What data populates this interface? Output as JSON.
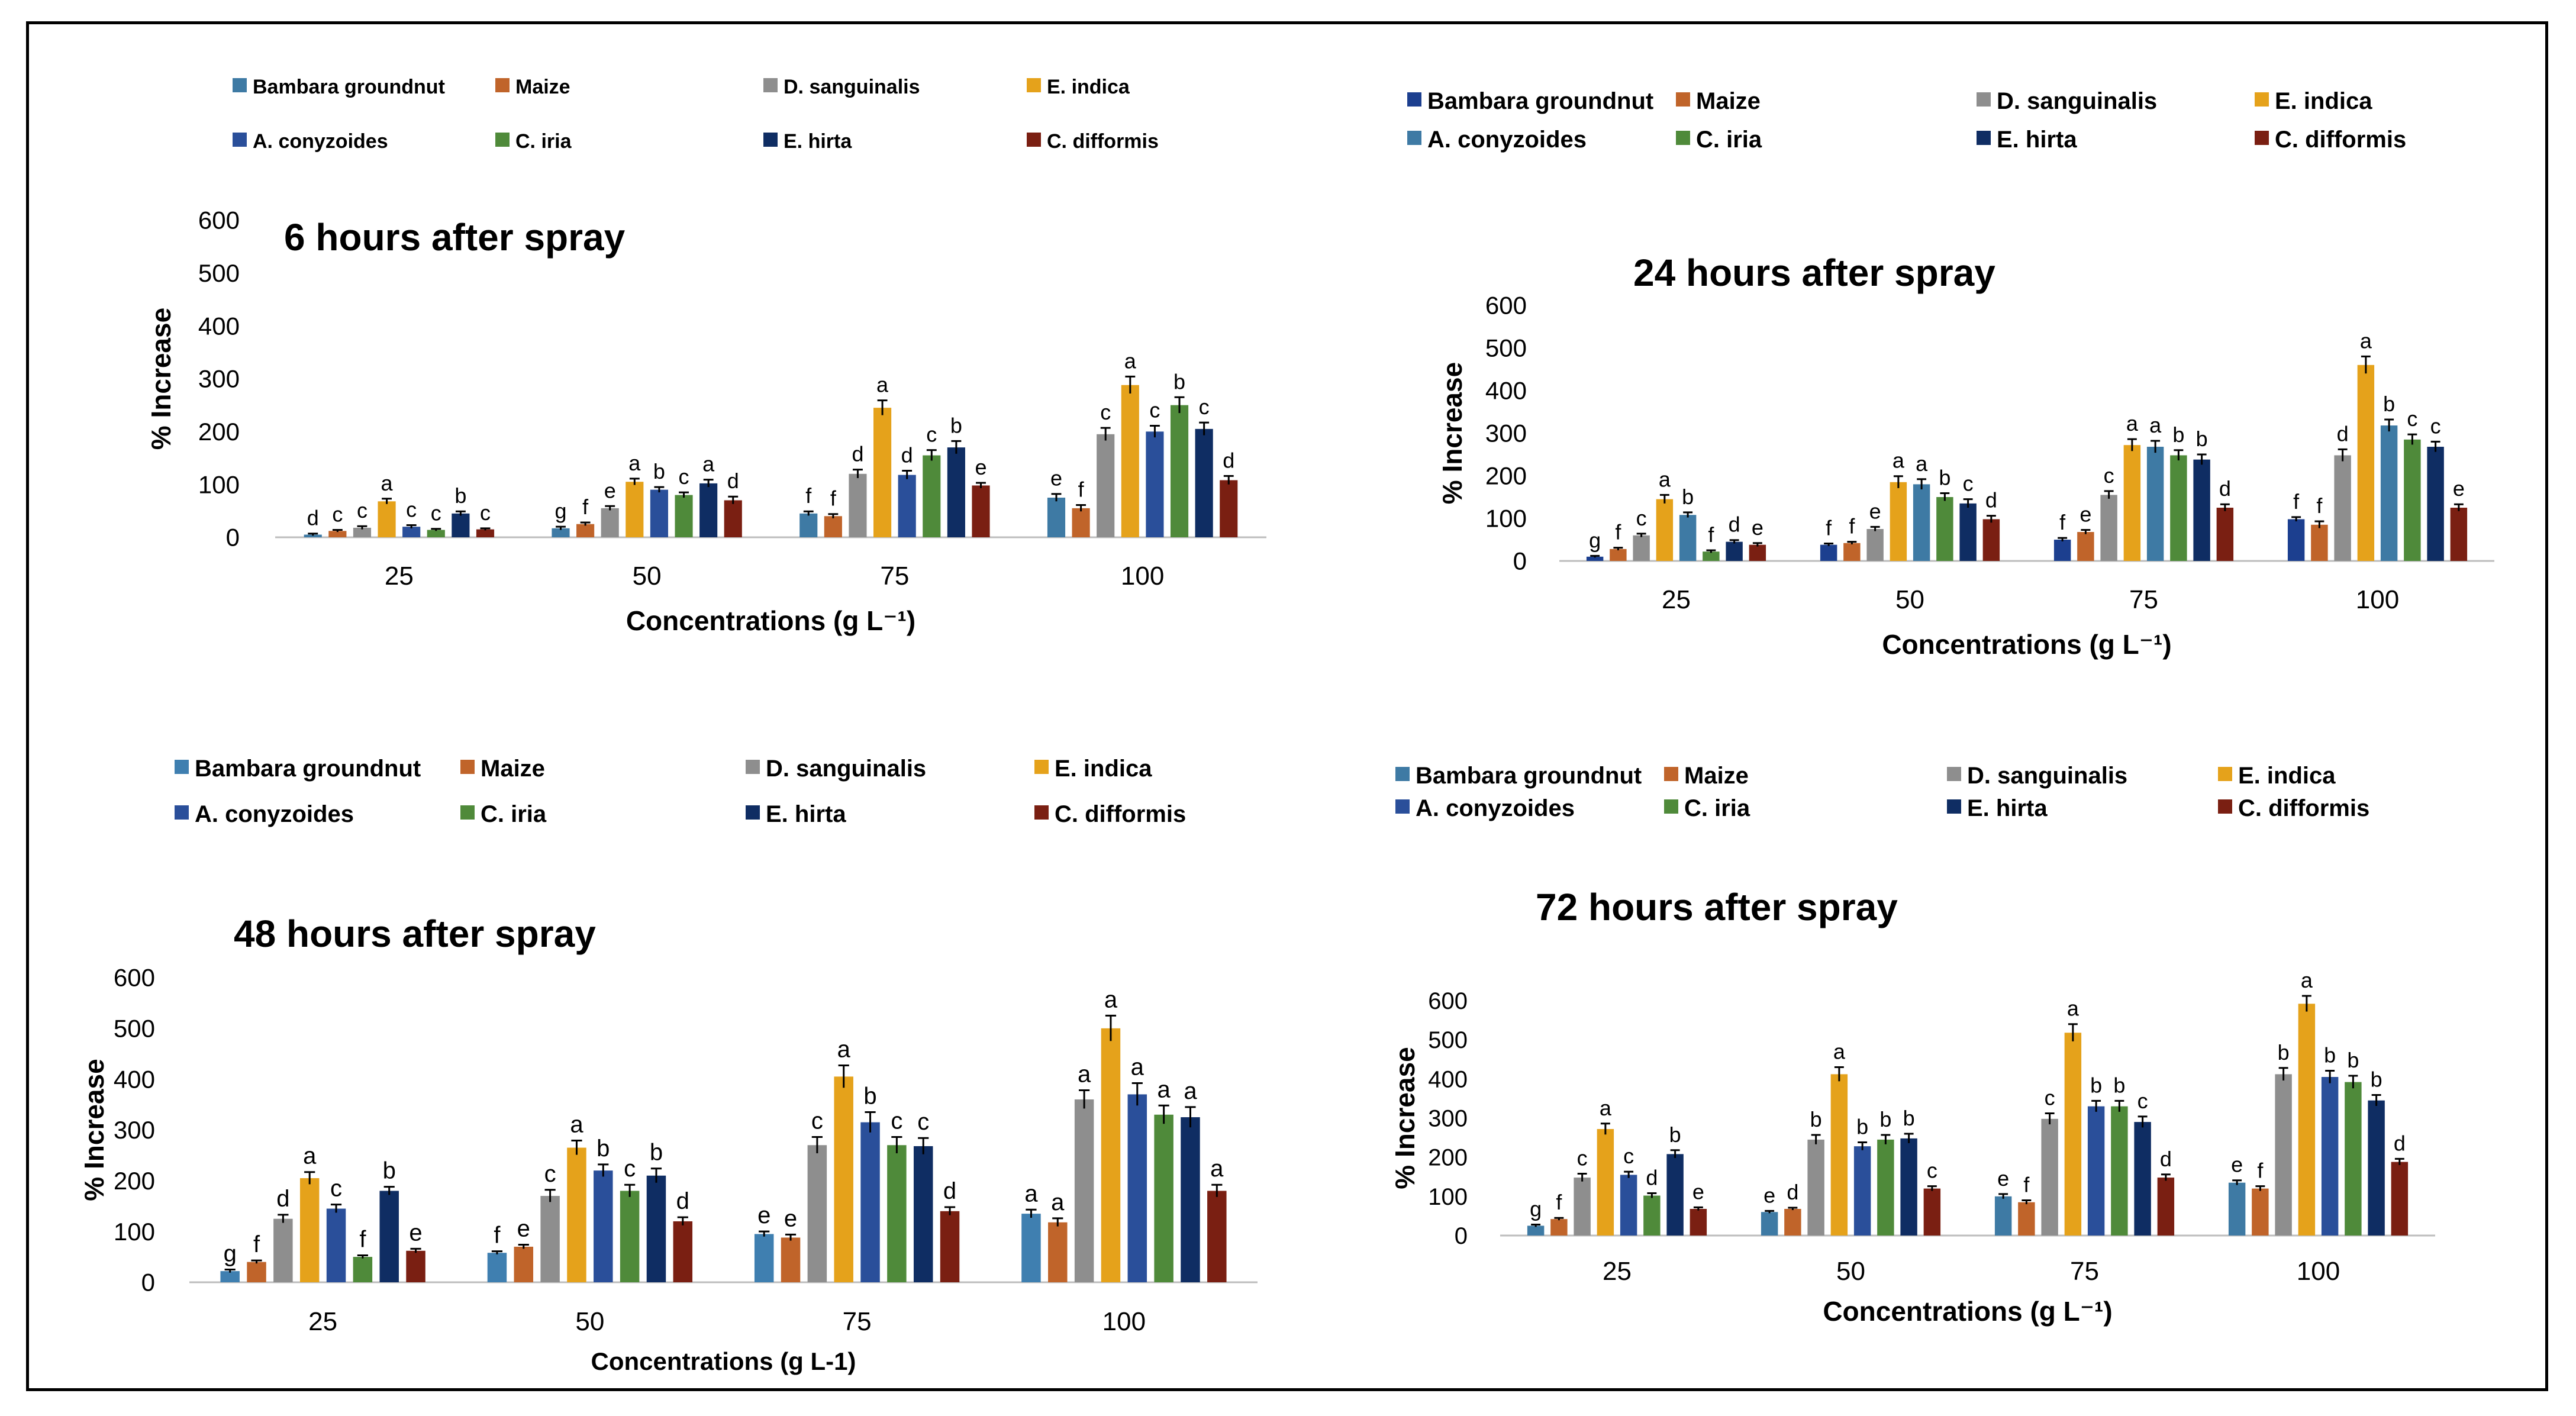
{
  "figure": {
    "series_names": [
      "Bambara groundnut",
      "Maize",
      "D. sanguinalis",
      "E. indica",
      "A. conyzoides",
      "C. iria",
      "E. hirta",
      "C. difformis"
    ]
  },
  "chart_data": [
    {
      "type": "bar",
      "title": "6 hours after spray",
      "xlabel": "Concentrations (g L⁻¹)",
      "ylabel": "% Increase",
      "ylim": [
        0,
        600
      ],
      "yticks": [
        "0",
        "100",
        "200",
        "300",
        "400",
        "500",
        "600"
      ],
      "categories": [
        "25",
        "50",
        "75",
        "100"
      ],
      "legend": [
        "Bambara groundnut",
        "Maize",
        "D. sanguinalis",
        "E. indica",
        "A. conyzoides",
        "C. iria",
        "E. hirta",
        "C. difformis"
      ],
      "colors": [
        "#3e7aa4",
        "#c0642a",
        "#8e8e8e",
        "#e5a21b",
        "#2a4f9a",
        "#4f8a3a",
        "#0f2d63",
        "#7a1f12"
      ],
      "series": [
        {
          "name": "Bambara groundnut",
          "values": [
            5,
            17,
            45,
            75
          ],
          "errors": [
            2,
            3,
            4,
            7
          ],
          "letters": [
            "d",
            "g",
            "f",
            "e"
          ]
        },
        {
          "name": "Maize",
          "values": [
            12,
            25,
            40,
            55
          ],
          "errors": [
            2,
            3,
            4,
            6
          ],
          "letters": [
            "c",
            "f",
            "f",
            "f"
          ]
        },
        {
          "name": "D. sanguinalis",
          "values": [
            18,
            55,
            120,
            195
          ],
          "errors": [
            3,
            4,
            8,
            12
          ],
          "letters": [
            "c",
            "e",
            "d",
            "c"
          ]
        },
        {
          "name": "E. indica",
          "values": [
            68,
            105,
            245,
            288
          ],
          "errors": [
            5,
            6,
            14,
            16
          ],
          "letters": [
            "a",
            "a",
            "a",
            "a"
          ]
        },
        {
          "name": "A. conyzoides",
          "values": [
            20,
            90,
            118,
            200
          ],
          "errors": [
            3,
            5,
            8,
            11
          ],
          "letters": [
            "c",
            "b",
            "d",
            "c"
          ]
        },
        {
          "name": "C. iria",
          "values": [
            14,
            80,
            155,
            250
          ],
          "errors": [
            2,
            5,
            10,
            15
          ],
          "letters": [
            "c",
            "c",
            "c",
            "b"
          ]
        },
        {
          "name": "E. hirta",
          "values": [
            45,
            102,
            170,
            205
          ],
          "errors": [
            4,
            7,
            12,
            12
          ],
          "letters": [
            "b",
            "a",
            "b",
            "c"
          ]
        },
        {
          "name": "C. difformis",
          "values": [
            15,
            70,
            98,
            108
          ],
          "errors": [
            2,
            7,
            5,
            8
          ],
          "letters": [
            "c",
            "d",
            "e",
            "d"
          ]
        }
      ]
    },
    {
      "type": "bar",
      "title": "24 hours after spray",
      "xlabel": "Concentrations (g L⁻¹)",
      "ylabel": "% Increase",
      "ylim": [
        0,
        600
      ],
      "yticks": [
        "0",
        "100",
        "200",
        "300",
        "400",
        "500",
        "600"
      ],
      "categories": [
        "25",
        "50",
        "75",
        "100"
      ],
      "legend": [
        "Bambara groundnut",
        "Maize",
        "D. sanguinalis",
        "E. indica",
        "A. conyzoides",
        "C. iria",
        "E. hirta",
        "C. difformis"
      ],
      "colors": [
        "#1c3f8f",
        "#c0642a",
        "#8e8e8e",
        "#e5a21b",
        "#3e7aa4",
        "#4f8a3a",
        "#0f2d63",
        "#7a1f12"
      ],
      "series": [
        {
          "name": "Bambara groundnut",
          "values": [
            10,
            38,
            50,
            98
          ],
          "errors": [
            2,
            3,
            4,
            5
          ],
          "letters": [
            "g",
            "f",
            "f",
            "f"
          ]
        },
        {
          "name": "Maize",
          "values": [
            28,
            42,
            68,
            85
          ],
          "errors": [
            3,
            3,
            5,
            8
          ],
          "letters": [
            "f",
            "f",
            "e",
            "f"
          ]
        },
        {
          "name": "D. sanguinalis",
          "values": [
            60,
            75,
            155,
            248
          ],
          "errors": [
            4,
            5,
            9,
            14
          ],
          "letters": [
            "c",
            "e",
            "c",
            "d"
          ]
        },
        {
          "name": "E. indica",
          "values": [
            145,
            185,
            272,
            460
          ],
          "errors": [
            10,
            14,
            14,
            20
          ],
          "letters": [
            "a",
            "a",
            "a",
            "a"
          ]
        },
        {
          "name": "A. conyzoides",
          "values": [
            108,
            180,
            268,
            318
          ],
          "errors": [
            6,
            12,
            14,
            14
          ],
          "letters": [
            "b",
            "a",
            "a",
            "b"
          ]
        },
        {
          "name": "C. iria",
          "values": [
            22,
            150,
            248,
            285
          ],
          "errors": [
            3,
            9,
            12,
            12
          ],
          "letters": [
            "f",
            "b",
            "b",
            "c"
          ]
        },
        {
          "name": "E. hirta",
          "values": [
            45,
            135,
            238,
            268
          ],
          "errors": [
            4,
            10,
            12,
            12
          ],
          "letters": [
            "d",
            "c",
            "b",
            "c"
          ]
        },
        {
          "name": "C. difformis",
          "values": [
            38,
            98,
            125,
            125
          ],
          "errors": [
            4,
            8,
            8,
            8
          ],
          "letters": [
            "e",
            "d",
            "d",
            "e"
          ]
        }
      ]
    },
    {
      "type": "bar",
      "title": "48 hours after spray",
      "xlabel": "Concentrations (g L-1)",
      "ylabel": "% Increase",
      "ylim": [
        0,
        600
      ],
      "yticks": [
        "0",
        "100",
        "200",
        "300",
        "400",
        "500",
        "600"
      ],
      "categories": [
        "25",
        "50",
        "75",
        "100"
      ],
      "legend": [
        "Bambara groundnut",
        "Maize",
        "D. sanguinalis",
        "E. indica",
        "A. conyzoides",
        "C. iria",
        "E. hirta",
        "C. difformis"
      ],
      "colors": [
        "#3f7fb0",
        "#c0642a",
        "#8e8e8e",
        "#e5a21b",
        "#2a4f9a",
        "#4f8a3a",
        "#0f2d63",
        "#7a1f12"
      ],
      "series": [
        {
          "name": "Bambara groundnut",
          "values": [
            22,
            58,
            95,
            135
          ],
          "errors": [
            3,
            3,
            5,
            8
          ],
          "letters": [
            "g",
            "f",
            "e",
            "a"
          ]
        },
        {
          "name": "Maize",
          "values": [
            40,
            70,
            88,
            118
          ],
          "errors": [
            3,
            4,
            6,
            8
          ],
          "letters": [
            "f",
            "e",
            "e",
            "a"
          ]
        },
        {
          "name": "D. sanguinalis",
          "values": [
            125,
            170,
            270,
            360
          ],
          "errors": [
            8,
            12,
            16,
            18
          ],
          "letters": [
            "d",
            "c",
            "c",
            "a"
          ]
        },
        {
          "name": "E. indica",
          "values": [
            205,
            265,
            405,
            500
          ],
          "errors": [
            12,
            14,
            22,
            25
          ],
          "letters": [
            "a",
            "a",
            "a",
            "a"
          ]
        },
        {
          "name": "A. conyzoides",
          "values": [
            145,
            220,
            315,
            370
          ],
          "errors": [
            8,
            12,
            20,
            22
          ],
          "letters": [
            "c",
            "b",
            "b",
            "a"
          ]
        },
        {
          "name": "C. iria",
          "values": [
            50,
            180,
            270,
            330
          ],
          "errors": [
            3,
            12,
            16,
            18
          ],
          "letters": [
            "f",
            "c",
            "c",
            "a"
          ]
        },
        {
          "name": "E. hirta",
          "values": [
            180,
            210,
            268,
            325
          ],
          "errors": [
            8,
            14,
            16,
            20
          ],
          "letters": [
            "b",
            "b",
            "c",
            "a"
          ]
        },
        {
          "name": "C. difformis",
          "values": [
            62,
            120,
            140,
            180
          ],
          "errors": [
            4,
            8,
            8,
            12
          ],
          "letters": [
            "e",
            "d",
            "d",
            "a"
          ]
        }
      ]
    },
    {
      "type": "bar",
      "title": "72 hours after spray",
      "xlabel": "Concentrations (g L⁻¹)",
      "ylabel": "% Increase",
      "ylim": [
        0,
        600
      ],
      "yticks": [
        "0",
        "100",
        "200",
        "300",
        "400",
        "500",
        "600"
      ],
      "categories": [
        "25",
        "50",
        "75",
        "100"
      ],
      "legend": [
        "Bambara groundnut",
        "Maize",
        "D. sanguinalis",
        "E. indica",
        "A. conyzoides",
        "C. iria",
        "E. hirta",
        "C. difformis"
      ],
      "colors": [
        "#3e7aa4",
        "#c0642a",
        "#8e8e8e",
        "#e5a21b",
        "#2a4f9a",
        "#4f8a3a",
        "#0f2d63",
        "#7a1f12"
      ],
      "series": [
        {
          "name": "Bambara groundnut",
          "values": [
            25,
            60,
            100,
            135
          ],
          "errors": [
            3,
            3,
            6,
            6
          ],
          "letters": [
            "g",
            "e",
            "e",
            "e"
          ]
        },
        {
          "name": "Maize",
          "values": [
            42,
            68,
            85,
            120
          ],
          "errors": [
            3,
            3,
            5,
            6
          ],
          "letters": [
            "f",
            "d",
            "f",
            "f"
          ]
        },
        {
          "name": "D. sanguinalis",
          "values": [
            148,
            245,
            298,
            412
          ],
          "errors": [
            10,
            12,
            14,
            16
          ],
          "letters": [
            "c",
            "b",
            "c",
            "b"
          ]
        },
        {
          "name": "E. indica",
          "values": [
            272,
            412,
            518,
            592
          ],
          "errors": [
            14,
            18,
            22,
            20
          ],
          "letters": [
            "a",
            "a",
            "a",
            "a"
          ]
        },
        {
          "name": "A. conyzoides",
          "values": [
            155,
            228,
            330,
            405
          ],
          "errors": [
            8,
            10,
            14,
            16
          ],
          "letters": [
            "c",
            "b",
            "b",
            "b"
          ]
        },
        {
          "name": "C. iria",
          "values": [
            102,
            245,
            330,
            392
          ],
          "errors": [
            6,
            12,
            14,
            16
          ],
          "letters": [
            "d",
            "b",
            "b",
            "b"
          ]
        },
        {
          "name": "E. hirta",
          "values": [
            208,
            248,
            290,
            345
          ],
          "errors": [
            10,
            12,
            14,
            14
          ],
          "letters": [
            "b",
            "b",
            "c",
            "b"
          ]
        },
        {
          "name": "C. difformis",
          "values": [
            68,
            120,
            148,
            188
          ],
          "errors": [
            4,
            6,
            8,
            8
          ],
          "letters": [
            "e",
            "c",
            "d",
            "d"
          ]
        }
      ]
    }
  ]
}
